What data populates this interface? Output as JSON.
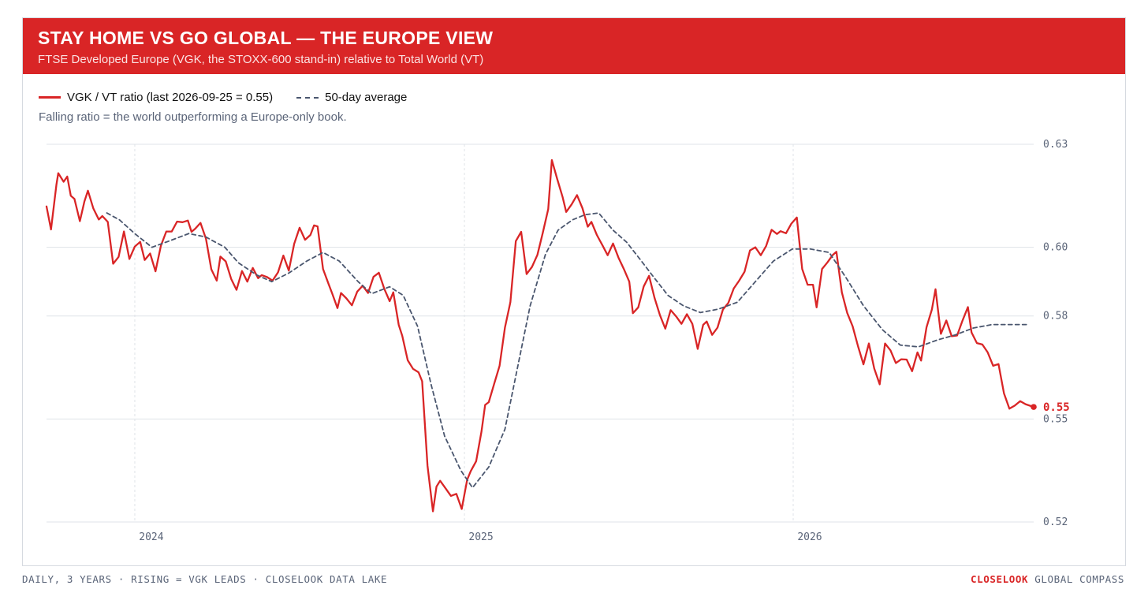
{
  "header": {
    "title": "STAY HOME VS GO GLOBAL — THE EUROPE VIEW",
    "subtitle": "FTSE Developed Europe (VGK, the STOXX-600 stand-in) relative to Total World (VT)"
  },
  "note": "Falling ratio = the world outperforming a Europe-only book.",
  "footer": {
    "left": "DAILY, 3 YEARS · RISING = VGK LEADS · CLOSELOOK DATA LAKE",
    "brand_strong": "CLOSELOOK",
    "brand_rest": "GLOBAL COMPASS"
  },
  "colors": {
    "ratio": "#d92526",
    "average": "#4a566e",
    "grid": "#dfe3e8"
  },
  "chart_data": {
    "type": "line",
    "title": "STAY HOME VS GO GLOBAL — THE EUROPE VIEW",
    "subtitle": "FTSE Developed Europe (VGK, the STOXX-600 stand-in) relative to Total World (VT)",
    "xlabel": "",
    "ylabel": "",
    "ylim": [
      0.52,
      0.63
    ],
    "yticks": [
      "0.63",
      "0.60",
      "0.58",
      "0.55",
      "0.52"
    ],
    "ytick_values": [
      0.63,
      0.6,
      0.58,
      0.55,
      0.52
    ],
    "xlim": [
      "2023-09-25",
      "2026-09-25"
    ],
    "xticks": [
      {
        "label": "2024",
        "date": "2024-01-01"
      },
      {
        "label": "2025",
        "date": "2025-01-01"
      },
      {
        "label": "2026",
        "date": "2026-01-01"
      }
    ],
    "grid": true,
    "legend_placement": "top-left",
    "last_label": "0.55",
    "series": [
      {
        "name": "VGK / VT ratio (last 2026-09-25 = 0.55)",
        "style": "solid",
        "color": "#d92526",
        "points": [
          [
            "2023-09-25",
            0.6119
          ],
          [
            "2023-09-30",
            0.6052
          ],
          [
            "2023-10-06",
            0.6183
          ],
          [
            "2023-10-08",
            0.6216
          ],
          [
            "2023-10-14",
            0.6191
          ],
          [
            "2023-10-18",
            0.6206
          ],
          [
            "2023-10-22",
            0.615
          ],
          [
            "2023-10-26",
            0.6141
          ],
          [
            "2023-11-01",
            0.6076
          ],
          [
            "2023-11-06",
            0.6133
          ],
          [
            "2023-11-10",
            0.6165
          ],
          [
            "2023-11-16",
            0.6113
          ],
          [
            "2023-11-22",
            0.6081
          ],
          [
            "2023-11-26",
            0.6091
          ],
          [
            "2023-12-02",
            0.6074
          ],
          [
            "2023-12-08",
            0.5952
          ],
          [
            "2023-12-14",
            0.5972
          ],
          [
            "2023-12-20",
            0.6046
          ],
          [
            "2023-12-26",
            0.5966
          ],
          [
            "2024-01-01",
            0.6002
          ],
          [
            "2024-01-07",
            0.6016
          ],
          [
            "2024-01-12",
            0.5963
          ],
          [
            "2024-01-18",
            0.5982
          ],
          [
            "2024-01-24",
            0.593
          ],
          [
            "2024-01-30",
            0.6005
          ],
          [
            "2024-02-05",
            0.6046
          ],
          [
            "2024-02-11",
            0.6046
          ],
          [
            "2024-02-17",
            0.6075
          ],
          [
            "2024-02-23",
            0.6073
          ],
          [
            "2024-02-29",
            0.6078
          ],
          [
            "2024-03-04",
            0.6045
          ],
          [
            "2024-03-08",
            0.6054
          ],
          [
            "2024-03-14",
            0.6071
          ],
          [
            "2024-03-20",
            0.6025
          ],
          [
            "2024-03-26",
            0.5936
          ],
          [
            "2024-04-01",
            0.5903
          ],
          [
            "2024-04-05",
            0.5973
          ],
          [
            "2024-04-11",
            0.5959
          ],
          [
            "2024-04-17",
            0.5908
          ],
          [
            "2024-04-23",
            0.5876
          ],
          [
            "2024-04-29",
            0.5931
          ],
          [
            "2024-05-05",
            0.59
          ],
          [
            "2024-05-11",
            0.594
          ],
          [
            "2024-05-17",
            0.591
          ],
          [
            "2024-05-21",
            0.5919
          ],
          [
            "2024-05-27",
            0.5913
          ],
          [
            "2024-06-02",
            0.5903
          ],
          [
            "2024-06-08",
            0.5927
          ],
          [
            "2024-06-14",
            0.5976
          ],
          [
            "2024-06-20",
            0.5932
          ],
          [
            "2024-06-26",
            0.601
          ],
          [
            "2024-07-02",
            0.6057
          ],
          [
            "2024-07-08",
            0.6022
          ],
          [
            "2024-07-14",
            0.6036
          ],
          [
            "2024-07-18",
            0.6064
          ],
          [
            "2024-07-22",
            0.6061
          ],
          [
            "2024-07-28",
            0.5937
          ],
          [
            "2024-08-03",
            0.5894
          ],
          [
            "2024-08-07",
            0.5867
          ],
          [
            "2024-08-13",
            0.5823
          ],
          [
            "2024-08-17",
            0.5867
          ],
          [
            "2024-08-23",
            0.5851
          ],
          [
            "2024-08-29",
            0.5831
          ],
          [
            "2024-09-04",
            0.5871
          ],
          [
            "2024-09-10",
            0.5888
          ],
          [
            "2024-09-16",
            0.5867
          ],
          [
            "2024-09-22",
            0.5914
          ],
          [
            "2024-09-28",
            0.5926
          ],
          [
            "2024-10-04",
            0.5879
          ],
          [
            "2024-10-10",
            0.5843
          ],
          [
            "2024-10-14",
            0.5869
          ],
          [
            "2024-10-20",
            0.5774
          ],
          [
            "2024-10-24",
            0.5742
          ],
          [
            "2024-10-30",
            0.5671
          ],
          [
            "2024-11-05",
            0.5646
          ],
          [
            "2024-11-11",
            0.5636
          ],
          [
            "2024-11-15",
            0.561
          ],
          [
            "2024-11-21",
            0.5364
          ],
          [
            "2024-11-27",
            0.5231
          ],
          [
            "2024-12-01",
            0.5303
          ],
          [
            "2024-12-05",
            0.532
          ],
          [
            "2024-12-11",
            0.5298
          ],
          [
            "2024-12-17",
            0.5276
          ],
          [
            "2024-12-23",
            0.5282
          ],
          [
            "2024-12-29",
            0.5238
          ],
          [
            "2025-01-04",
            0.5323
          ],
          [
            "2025-01-08",
            0.5348
          ],
          [
            "2025-01-14",
            0.5377
          ],
          [
            "2025-01-20",
            0.5464
          ],
          [
            "2025-01-24",
            0.5541
          ],
          [
            "2025-01-28",
            0.5549
          ],
          [
            "2025-02-03",
            0.5602
          ],
          [
            "2025-02-09",
            0.5655
          ],
          [
            "2025-02-15",
            0.5766
          ],
          [
            "2025-02-21",
            0.584
          ],
          [
            "2025-02-27",
            0.6018
          ],
          [
            "2025-03-05",
            0.6045
          ],
          [
            "2025-03-11",
            0.5922
          ],
          [
            "2025-03-17",
            0.5943
          ],
          [
            "2025-03-23",
            0.5978
          ],
          [
            "2025-03-29",
            0.6042
          ],
          [
            "2025-04-04",
            0.6111
          ],
          [
            "2025-04-08",
            0.6254
          ],
          [
            "2025-04-14",
            0.6199
          ],
          [
            "2025-04-20",
            0.6146
          ],
          [
            "2025-04-24",
            0.6103
          ],
          [
            "2025-04-30",
            0.6125
          ],
          [
            "2025-05-06",
            0.6152
          ],
          [
            "2025-05-12",
            0.6114
          ],
          [
            "2025-05-18",
            0.606
          ],
          [
            "2025-05-22",
            0.6074
          ],
          [
            "2025-05-28",
            0.6036
          ],
          [
            "2025-06-03",
            0.6007
          ],
          [
            "2025-06-09",
            0.5977
          ],
          [
            "2025-06-15",
            0.6011
          ],
          [
            "2025-06-21",
            0.597
          ],
          [
            "2025-06-27",
            0.5937
          ],
          [
            "2025-07-03",
            0.59
          ],
          [
            "2025-07-07",
            0.5808
          ],
          [
            "2025-07-13",
            0.5825
          ],
          [
            "2025-07-19",
            0.5886
          ],
          [
            "2025-07-25",
            0.5917
          ],
          [
            "2025-07-31",
            0.5853
          ],
          [
            "2025-08-06",
            0.5803
          ],
          [
            "2025-08-12",
            0.5763
          ],
          [
            "2025-08-18",
            0.5817
          ],
          [
            "2025-08-24",
            0.5799
          ],
          [
            "2025-08-30",
            0.5777
          ],
          [
            "2025-09-05",
            0.5805
          ],
          [
            "2025-09-11",
            0.5777
          ],
          [
            "2025-09-17",
            0.5704
          ],
          [
            "2025-09-23",
            0.5774
          ],
          [
            "2025-09-27",
            0.5784
          ],
          [
            "2025-10-03",
            0.5745
          ],
          [
            "2025-10-09",
            0.5766
          ],
          [
            "2025-10-15",
            0.5819
          ],
          [
            "2025-10-21",
            0.5838
          ],
          [
            "2025-10-27",
            0.588
          ],
          [
            "2025-11-02",
            0.5903
          ],
          [
            "2025-11-08",
            0.5929
          ],
          [
            "2025-11-14",
            0.5991
          ],
          [
            "2025-11-20",
            0.6
          ],
          [
            "2025-11-26",
            0.5977
          ],
          [
            "2025-12-02",
            0.6004
          ],
          [
            "2025-12-08",
            0.6051
          ],
          [
            "2025-12-14",
            0.6039
          ],
          [
            "2025-12-18",
            0.6047
          ],
          [
            "2025-12-24",
            0.6041
          ],
          [
            "2025-12-30",
            0.6069
          ],
          [
            "2026-01-05",
            0.6087
          ],
          [
            "2026-01-11",
            0.5937
          ],
          [
            "2026-01-17",
            0.5891
          ],
          [
            "2026-01-23",
            0.5891
          ],
          [
            "2026-01-27",
            0.5825
          ],
          [
            "2026-02-02",
            0.5937
          ],
          [
            "2026-02-08",
            0.5956
          ],
          [
            "2026-02-14",
            0.5978
          ],
          [
            "2026-02-18",
            0.5987
          ],
          [
            "2026-02-24",
            0.5869
          ],
          [
            "2026-03-02",
            0.5809
          ],
          [
            "2026-03-08",
            0.577
          ],
          [
            "2026-03-14",
            0.5712
          ],
          [
            "2026-03-20",
            0.5659
          ],
          [
            "2026-03-26",
            0.572
          ],
          [
            "2026-04-01",
            0.5647
          ],
          [
            "2026-04-07",
            0.5601
          ],
          [
            "2026-04-13",
            0.572
          ],
          [
            "2026-04-19",
            0.57
          ],
          [
            "2026-04-25",
            0.5663
          ],
          [
            "2026-05-01",
            0.5674
          ],
          [
            "2026-05-07",
            0.5673
          ],
          [
            "2026-05-13",
            0.5639
          ],
          [
            "2026-05-19",
            0.5694
          ],
          [
            "2026-05-23",
            0.567
          ],
          [
            "2026-05-29",
            0.5767
          ],
          [
            "2026-06-04",
            0.5819
          ],
          [
            "2026-06-08",
            0.5878
          ],
          [
            "2026-06-14",
            0.5748
          ],
          [
            "2026-06-20",
            0.5787
          ],
          [
            "2026-06-26",
            0.5741
          ],
          [
            "2026-07-02",
            0.5743
          ],
          [
            "2026-07-08",
            0.5787
          ],
          [
            "2026-07-14",
            0.5826
          ],
          [
            "2026-07-18",
            0.5752
          ],
          [
            "2026-07-24",
            0.5721
          ],
          [
            "2026-07-30",
            0.5717
          ],
          [
            "2026-08-05",
            0.5694
          ],
          [
            "2026-08-11",
            0.5655
          ],
          [
            "2026-08-17",
            0.566
          ],
          [
            "2026-08-23",
            0.5575
          ],
          [
            "2026-08-29",
            0.553
          ],
          [
            "2026-09-04",
            0.5539
          ],
          [
            "2026-09-10",
            0.5552
          ],
          [
            "2026-09-16",
            0.5543
          ],
          [
            "2026-09-25",
            0.5535
          ]
        ]
      },
      {
        "name": "50-day average",
        "style": "dashed",
        "color": "#4a566e",
        "points": [
          [
            "2023-12-01",
            0.61
          ],
          [
            "2023-12-15",
            0.608
          ],
          [
            "2024-01-01",
            0.604
          ],
          [
            "2024-01-20",
            0.6
          ],
          [
            "2024-02-10",
            0.602
          ],
          [
            "2024-03-01",
            0.604
          ],
          [
            "2024-03-20",
            0.603
          ],
          [
            "2024-04-10",
            0.6
          ],
          [
            "2024-04-25",
            0.5955
          ],
          [
            "2024-05-15",
            0.592
          ],
          [
            "2024-06-01",
            0.59
          ],
          [
            "2024-06-20",
            0.5925
          ],
          [
            "2024-07-10",
            0.596
          ],
          [
            "2024-07-28",
            0.5985
          ],
          [
            "2024-08-15",
            0.596
          ],
          [
            "2024-09-05",
            0.59
          ],
          [
            "2024-09-20",
            0.5865
          ],
          [
            "2024-10-10",
            0.5885
          ],
          [
            "2024-10-25",
            0.586
          ],
          [
            "2024-11-10",
            0.577
          ],
          [
            "2024-11-25",
            0.56
          ],
          [
            "2024-12-10",
            0.545
          ],
          [
            "2024-12-28",
            0.535
          ],
          [
            "2025-01-10",
            0.53
          ],
          [
            "2025-01-28",
            0.536
          ],
          [
            "2025-02-15",
            0.547
          ],
          [
            "2025-03-01",
            0.565
          ],
          [
            "2025-03-15",
            0.583
          ],
          [
            "2025-04-01",
            0.598
          ],
          [
            "2025-04-15",
            0.605
          ],
          [
            "2025-05-01",
            0.608
          ],
          [
            "2025-05-15",
            0.6095
          ],
          [
            "2025-05-30",
            0.61
          ],
          [
            "2025-06-15",
            0.605
          ],
          [
            "2025-06-30",
            0.6015
          ],
          [
            "2025-07-15",
            0.5965
          ],
          [
            "2025-07-31",
            0.591
          ],
          [
            "2025-08-15",
            0.586
          ],
          [
            "2025-09-01",
            0.583
          ],
          [
            "2025-09-20",
            0.581
          ],
          [
            "2025-10-10",
            0.582
          ],
          [
            "2025-10-31",
            0.584
          ],
          [
            "2025-11-20",
            0.59
          ],
          [
            "2025-12-10",
            0.596
          ],
          [
            "2025-12-31",
            0.5995
          ],
          [
            "2026-01-20",
            0.5995
          ],
          [
            "2026-02-10",
            0.5985
          ],
          [
            "2026-03-01",
            0.591
          ],
          [
            "2026-03-20",
            0.583
          ],
          [
            "2026-04-10",
            0.576
          ],
          [
            "2026-04-30",
            0.5715
          ],
          [
            "2026-05-20",
            0.571
          ],
          [
            "2026-06-10",
            0.573
          ],
          [
            "2026-06-30",
            0.5745
          ],
          [
            "2026-07-20",
            0.5765
          ],
          [
            "2026-08-10",
            0.5775
          ],
          [
            "2026-09-20",
            0.5775
          ]
        ]
      }
    ]
  }
}
